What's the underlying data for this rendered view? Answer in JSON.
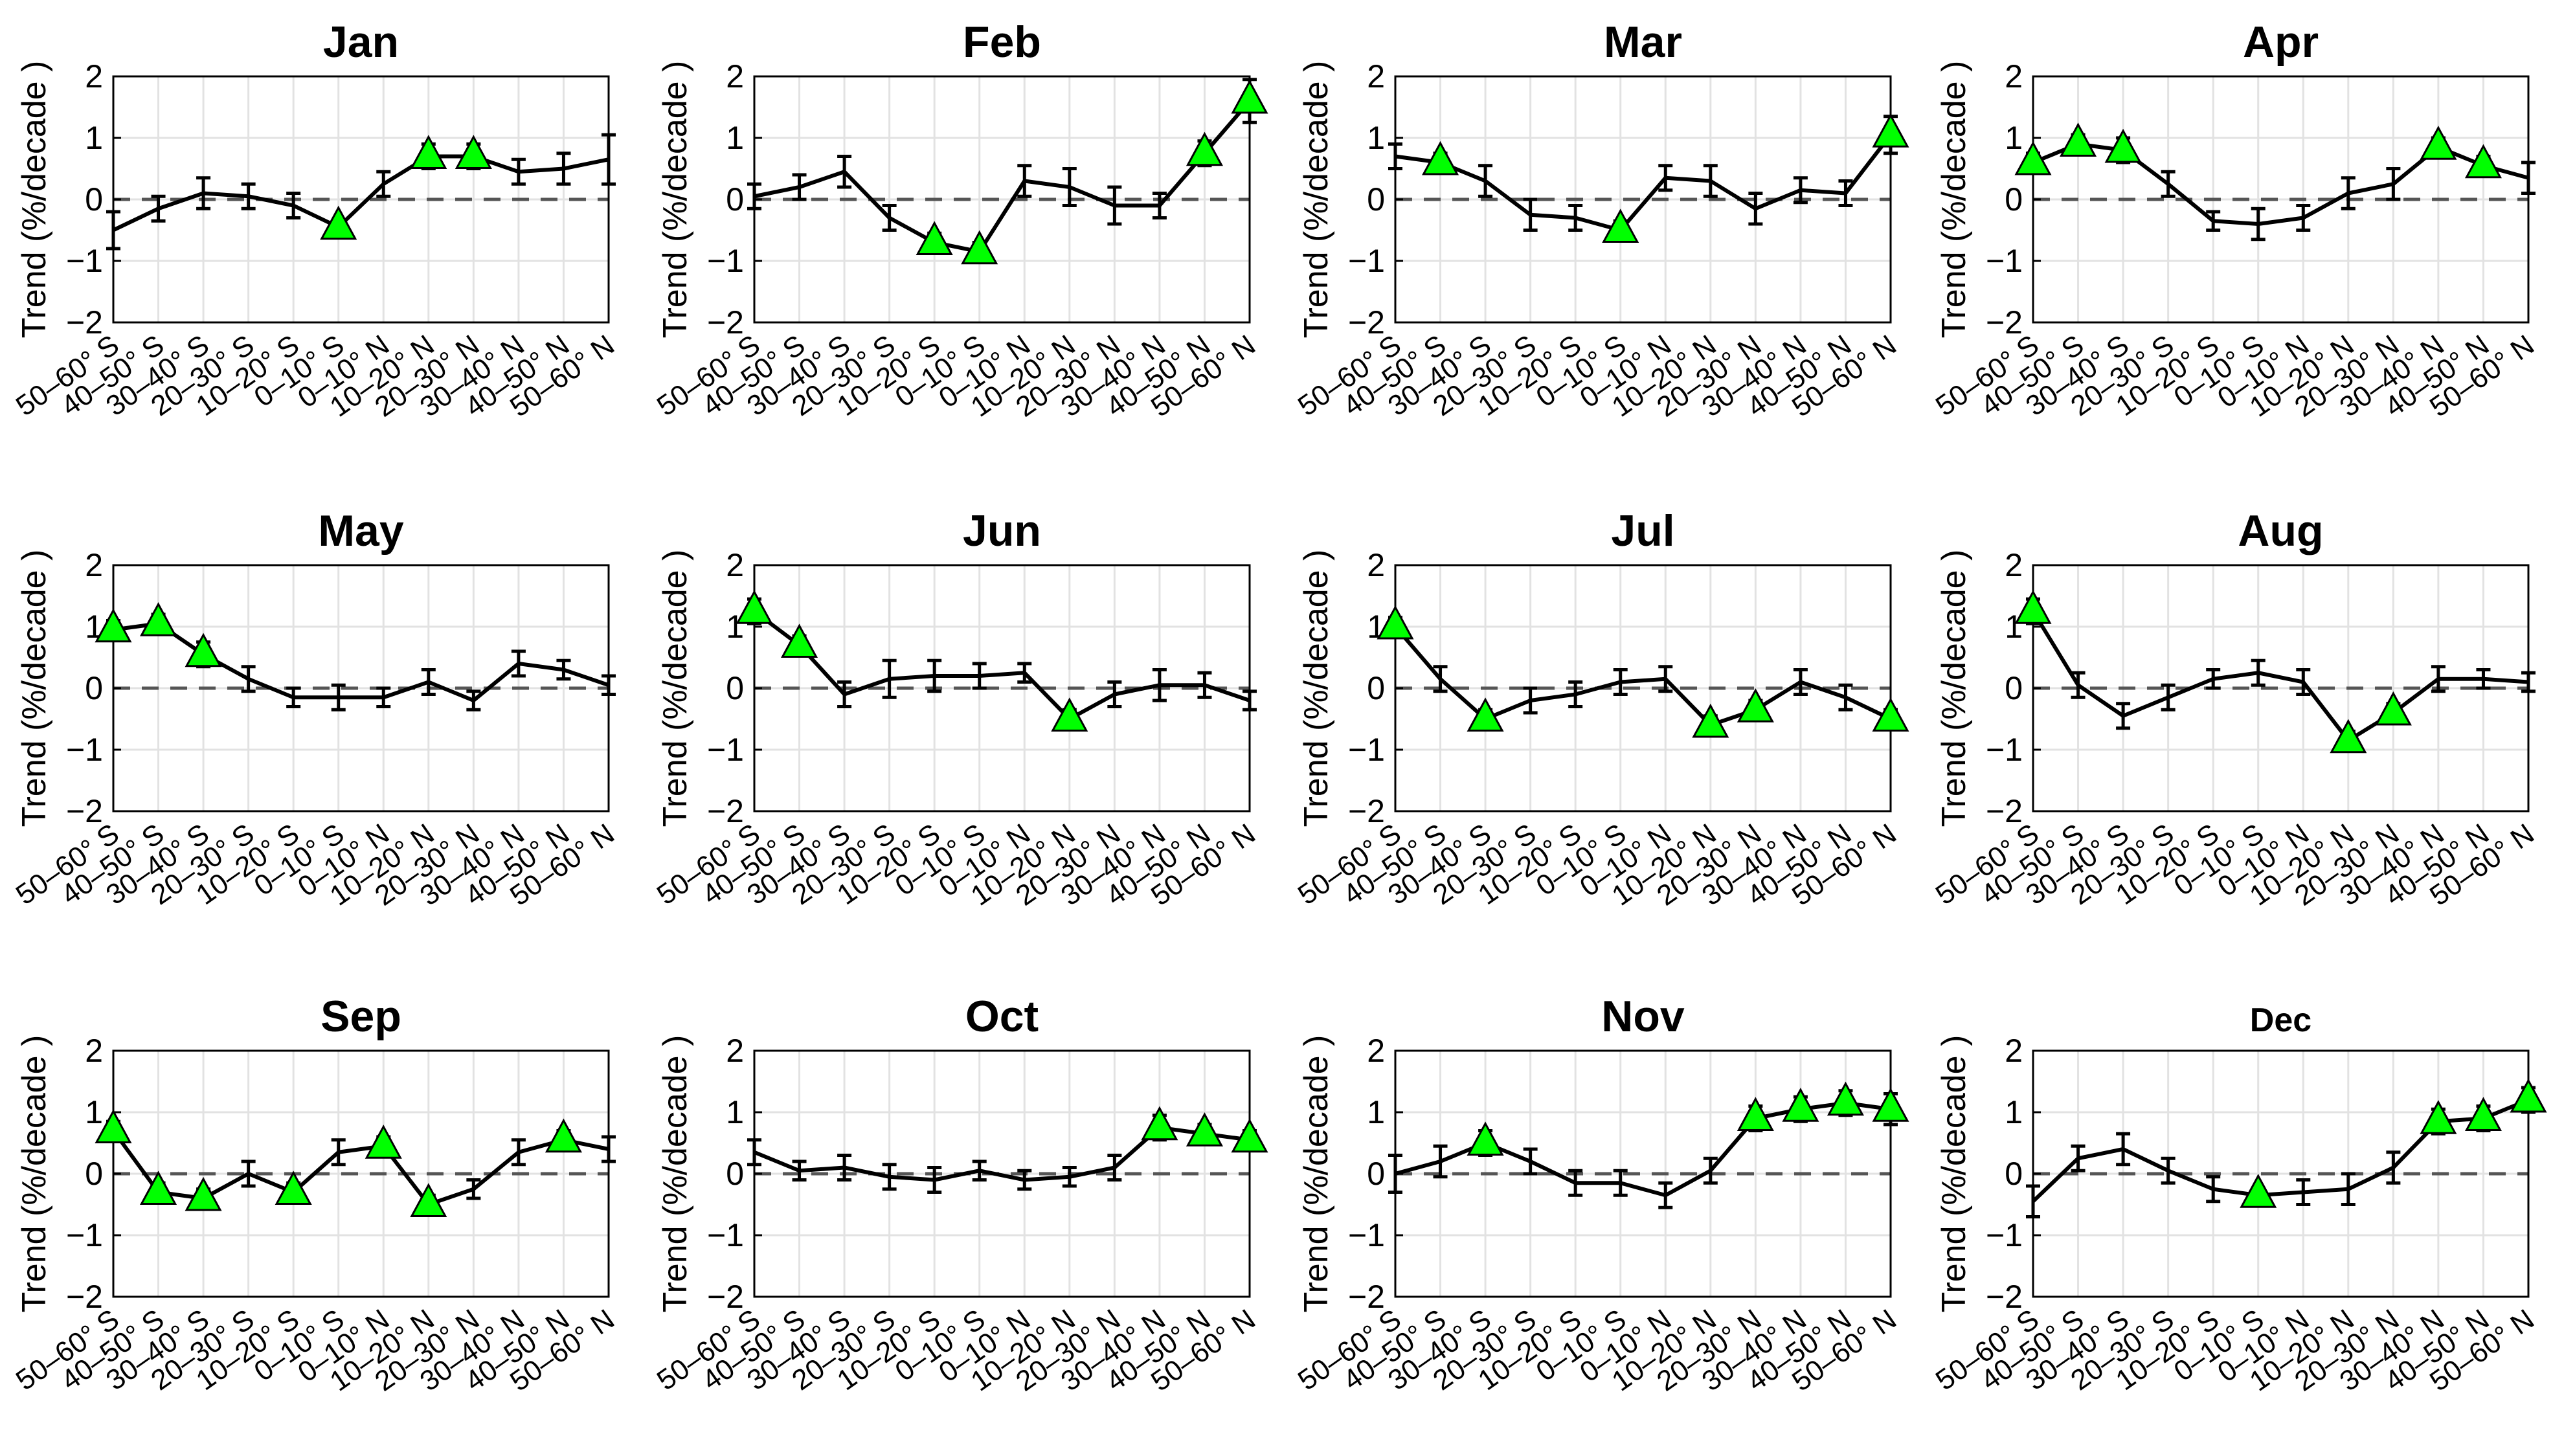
{
  "figure": {
    "y_axis_label": "Trend (%/decade )",
    "x_categories": [
      "50–60° S",
      "40–50° S",
      "30–40° S",
      "20–30° S",
      "10–20° S",
      "0–10° S",
      "0–10° N",
      "10–20° N",
      "20–30° N",
      "30–40° N",
      "40–50° N",
      "50–60° N"
    ],
    "y_ticks": [
      "2",
      "1",
      "0",
      "−1",
      "−2"
    ]
  },
  "colors": {
    "line": "#000000",
    "marker_fill": "#00ff00",
    "zero_line": "#555555",
    "grid": "#e2e2e2"
  },
  "chart_data": [
    {
      "type": "line",
      "title": "Jan",
      "ylim": [
        -2,
        2
      ],
      "values": [
        -0.5,
        -0.15,
        0.1,
        0.05,
        -0.1,
        -0.45,
        0.25,
        0.7,
        0.7,
        0.45,
        0.5,
        0.65
      ],
      "errors": [
        0.3,
        0.2,
        0.25,
        0.2,
        0.2,
        0.1,
        0.2,
        0.2,
        0.2,
        0.2,
        0.25,
        0.4
      ],
      "significant": [
        5,
        7,
        8
      ]
    },
    {
      "type": "line",
      "title": "Feb",
      "ylim": [
        -2,
        2
      ],
      "values": [
        0.05,
        0.2,
        0.45,
        -0.3,
        -0.7,
        -0.85,
        0.3,
        0.2,
        -0.1,
        -0.1,
        0.75,
        1.6
      ],
      "errors": [
        0.2,
        0.2,
        0.25,
        0.2,
        0.15,
        0.15,
        0.25,
        0.3,
        0.3,
        0.2,
        0.2,
        0.35
      ],
      "significant": [
        4,
        5,
        10,
        11
      ]
    },
    {
      "type": "line",
      "title": "Mar",
      "ylim": [
        -2,
        2
      ],
      "values": [
        0.7,
        0.6,
        0.3,
        -0.25,
        -0.3,
        -0.5,
        0.35,
        0.3,
        -0.15,
        0.15,
        0.1,
        1.05
      ],
      "errors": [
        0.2,
        0.15,
        0.25,
        0.25,
        0.2,
        0.15,
        0.2,
        0.25,
        0.25,
        0.2,
        0.2,
        0.3
      ],
      "significant": [
        1,
        5,
        11
      ]
    },
    {
      "type": "line",
      "title": "Apr",
      "ylim": [
        -2,
        2
      ],
      "values": [
        0.6,
        0.9,
        0.8,
        0.25,
        -0.35,
        -0.4,
        -0.3,
        0.1,
        0.25,
        0.85,
        0.55,
        0.35
      ],
      "errors": [
        0.15,
        0.15,
        0.2,
        0.2,
        0.15,
        0.25,
        0.2,
        0.25,
        0.25,
        0.15,
        0.15,
        0.25
      ],
      "significant": [
        0,
        1,
        2,
        9,
        10
      ]
    },
    {
      "type": "line",
      "title": "May",
      "ylim": [
        -2,
        2
      ],
      "values": [
        0.95,
        1.05,
        0.55,
        0.15,
        -0.15,
        -0.15,
        -0.15,
        0.1,
        -0.2,
        0.4,
        0.3,
        0.05
      ],
      "errors": [
        0.15,
        0.15,
        0.2,
        0.2,
        0.15,
        0.2,
        0.15,
        0.2,
        0.15,
        0.2,
        0.15,
        0.15
      ],
      "significant": [
        0,
        1,
        2
      ]
    },
    {
      "type": "line",
      "title": "Jun",
      "ylim": [
        -2,
        2
      ],
      "values": [
        1.25,
        0.7,
        -0.1,
        0.15,
        0.2,
        0.2,
        0.25,
        -0.5,
        -0.1,
        0.05,
        0.05,
        -0.2
      ],
      "errors": [
        0.2,
        0.15,
        0.2,
        0.3,
        0.25,
        0.2,
        0.15,
        0.15,
        0.2,
        0.25,
        0.2,
        0.15
      ],
      "significant": [
        0,
        1,
        7
      ]
    },
    {
      "type": "line",
      "title": "Jul",
      "ylim": [
        -2,
        2
      ],
      "values": [
        1.0,
        0.15,
        -0.5,
        -0.2,
        -0.1,
        0.1,
        0.15,
        -0.6,
        -0.35,
        0.1,
        -0.15,
        -0.5
      ],
      "errors": [
        0.15,
        0.2,
        0.15,
        0.2,
        0.2,
        0.2,
        0.2,
        0.15,
        0.15,
        0.2,
        0.2,
        0.15
      ],
      "significant": [
        0,
        2,
        7,
        8,
        11
      ]
    },
    {
      "type": "line",
      "title": "Aug",
      "ylim": [
        -2,
        2
      ],
      "values": [
        1.25,
        0.05,
        -0.45,
        -0.15,
        0.15,
        0.25,
        0.1,
        -0.85,
        -0.4,
        0.15,
        0.15,
        0.1
      ],
      "errors": [
        0.2,
        0.2,
        0.2,
        0.2,
        0.15,
        0.2,
        0.2,
        0.15,
        0.15,
        0.2,
        0.15,
        0.15
      ],
      "significant": [
        0,
        7,
        8
      ]
    },
    {
      "type": "line",
      "title": "Sep",
      "ylim": [
        -2,
        2
      ],
      "values": [
        0.7,
        -0.3,
        -0.4,
        0.0,
        -0.3,
        0.35,
        0.45,
        -0.5,
        -0.25,
        0.35,
        0.55,
        0.4
      ],
      "errors": [
        0.15,
        0.15,
        0.15,
        0.2,
        0.15,
        0.2,
        0.15,
        0.15,
        0.15,
        0.2,
        0.15,
        0.2
      ],
      "significant": [
        0,
        1,
        2,
        4,
        6,
        7,
        10
      ]
    },
    {
      "type": "line",
      "title": "Oct",
      "ylim": [
        -2,
        2
      ],
      "values": [
        0.35,
        0.05,
        0.1,
        -0.05,
        -0.1,
        0.05,
        -0.1,
        -0.05,
        0.1,
        0.75,
        0.65,
        0.55
      ],
      "errors": [
        0.2,
        0.15,
        0.2,
        0.2,
        0.2,
        0.15,
        0.15,
        0.15,
        0.2,
        0.2,
        0.15,
        0.15
      ],
      "significant": [
        9,
        10,
        11
      ]
    },
    {
      "type": "line",
      "title": "Nov",
      "ylim": [
        -2,
        2
      ],
      "values": [
        0.0,
        0.2,
        0.5,
        0.2,
        -0.15,
        -0.15,
        -0.35,
        0.05,
        0.9,
        1.05,
        1.15,
        1.05
      ],
      "errors": [
        0.3,
        0.25,
        0.2,
        0.2,
        0.2,
        0.2,
        0.2,
        0.2,
        0.2,
        0.2,
        0.2,
        0.25
      ],
      "significant": [
        2,
        8,
        9,
        10,
        11
      ]
    },
    {
      "type": "line",
      "title": "Dec",
      "ylim": [
        -2,
        2
      ],
      "values": [
        -0.45,
        0.25,
        0.4,
        0.05,
        -0.25,
        -0.35,
        -0.3,
        -0.25,
        0.1,
        0.85,
        0.9,
        1.2
      ],
      "errors": [
        0.25,
        0.2,
        0.25,
        0.2,
        0.2,
        0.1,
        0.2,
        0.25,
        0.25,
        0.2,
        0.2,
        0.2
      ],
      "significant": [
        5,
        9,
        10,
        11
      ]
    }
  ]
}
